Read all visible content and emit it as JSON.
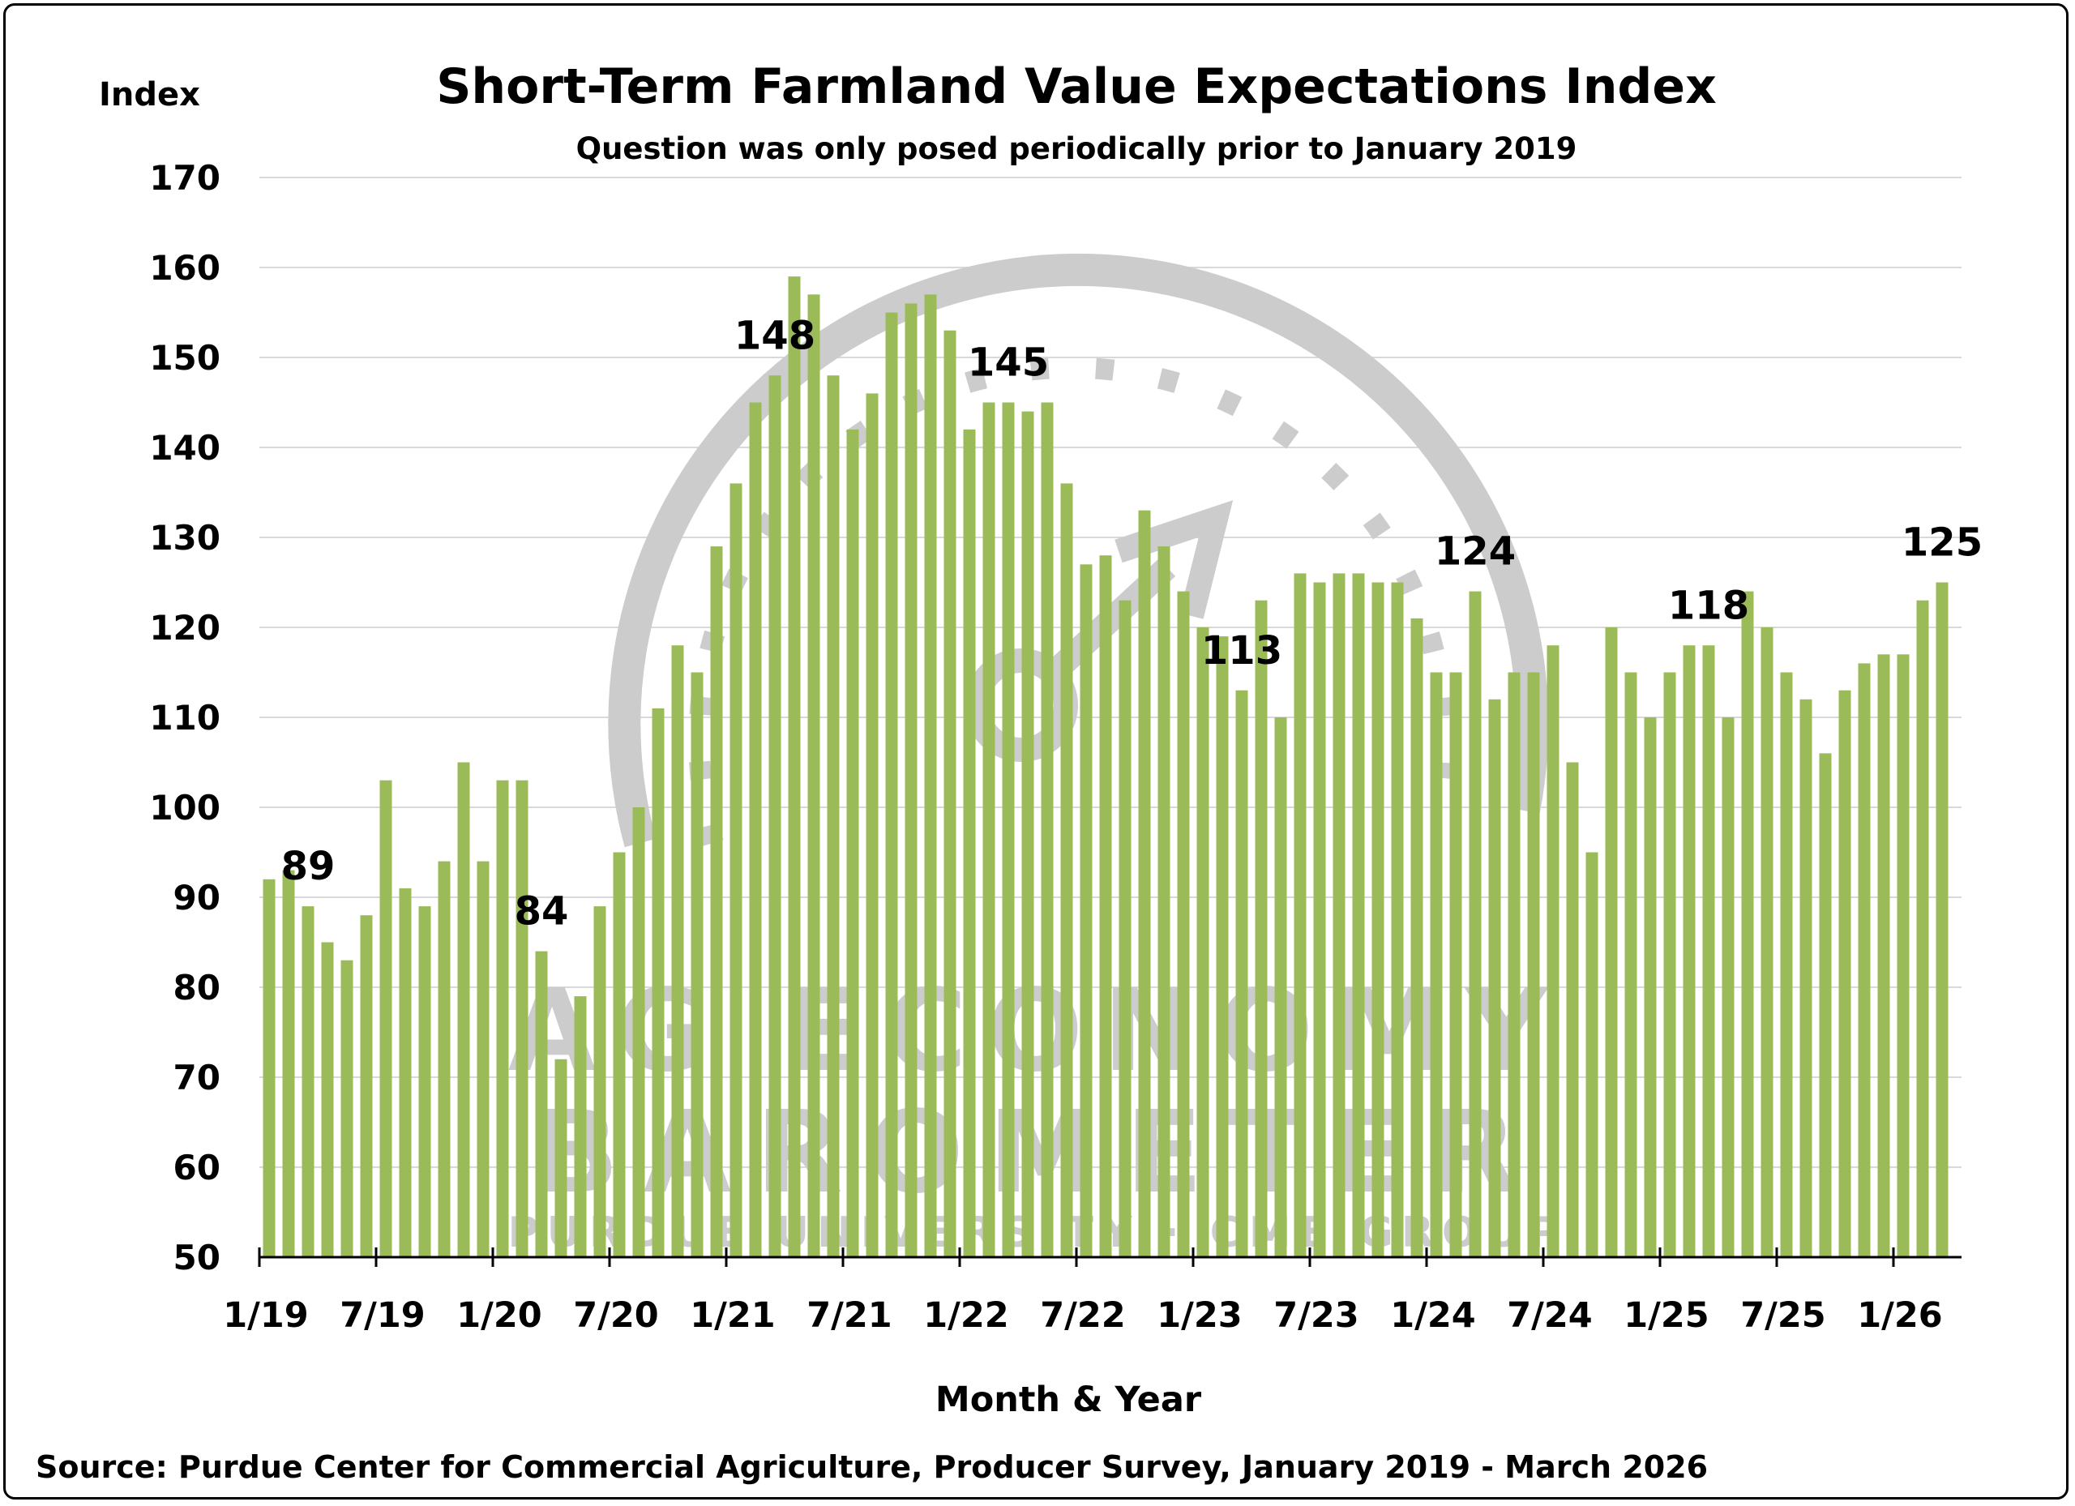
{
  "chart_data": {
    "type": "bar",
    "title": "Short-Term Farmland Value Expectations Index",
    "subtitle": "Question was only posed periodically prior to January 2019",
    "ylabel": "Index",
    "xlabel": "Month & Year",
    "source": "Source: Purdue Center for Commercial Agriculture, Producer Survey, January 2019 - March 2026",
    "ylim": [
      50,
      170
    ],
    "yticks": [
      50,
      60,
      70,
      80,
      90,
      100,
      110,
      120,
      130,
      140,
      150,
      160,
      170
    ],
    "grid": true,
    "bar_color": "#9BBB59",
    "grid_color": "#D9D9D9",
    "xtick_labels": [
      "1/19",
      "7/19",
      "1/20",
      "7/20",
      "1/21",
      "7/21",
      "1/22",
      "7/22",
      "1/23",
      "7/23",
      "1/24",
      "7/24",
      "1/25",
      "7/25",
      "1/26"
    ],
    "categories": [
      "1/19",
      "2/19",
      "3/19",
      "4/19",
      "5/19",
      "6/19",
      "7/19",
      "8/19",
      "9/19",
      "10/19",
      "11/19",
      "12/19",
      "1/20",
      "2/20",
      "3/20",
      "4/20",
      "5/20",
      "6/20",
      "7/20",
      "8/20",
      "9/20",
      "10/20",
      "11/20",
      "12/20",
      "1/21",
      "2/21",
      "3/21",
      "4/21",
      "5/21",
      "6/21",
      "7/21",
      "8/21",
      "9/21",
      "10/21",
      "11/21",
      "12/21",
      "1/22",
      "2/22",
      "3/22",
      "4/22",
      "5/22",
      "6/22",
      "7/22",
      "8/22",
      "9/22",
      "10/22",
      "11/22",
      "12/22",
      "1/23",
      "2/23",
      "3/23",
      "4/23",
      "5/23",
      "6/23",
      "7/23",
      "8/23",
      "9/23",
      "10/23",
      "11/23",
      "12/23",
      "1/24",
      "2/24",
      "3/24",
      "4/24",
      "5/24",
      "6/24",
      "7/24",
      "8/24",
      "9/24",
      "10/24",
      "11/24",
      "12/24",
      "1/25",
      "2/25",
      "3/25",
      "4/25",
      "5/25",
      "6/25",
      "7/25",
      "8/25",
      "9/25",
      "10/25",
      "11/25",
      "12/25",
      "1/26",
      "2/26",
      "3/26"
    ],
    "values": [
      92,
      93,
      89,
      85,
      83,
      88,
      103,
      91,
      89,
      94,
      105,
      94,
      103,
      103,
      84,
      72,
      79,
      89,
      95,
      100,
      111,
      118,
      115,
      129,
      136,
      145,
      148,
      159,
      157,
      148,
      142,
      146,
      155,
      156,
      157,
      153,
      142,
      145,
      145,
      144,
      145,
      136,
      127,
      128,
      123,
      133,
      129,
      124,
      120,
      119,
      113,
      123,
      110,
      126,
      125,
      126,
      126,
      125,
      125,
      121,
      115,
      115,
      124,
      112,
      115,
      115,
      118,
      105,
      95,
      120,
      115,
      110,
      115,
      118,
      118,
      110,
      124,
      120,
      115,
      112,
      106,
      113,
      116,
      117,
      117,
      123,
      125
    ],
    "annotations": [
      {
        "category": "3/19",
        "text": "89"
      },
      {
        "category": "3/20",
        "text": "84"
      },
      {
        "category": "3/21",
        "text": "148"
      },
      {
        "category": "3/22",
        "text": "145"
      },
      {
        "category": "3/23",
        "text": "113"
      },
      {
        "category": "3/24",
        "text": "124"
      },
      {
        "category": "3/25",
        "text": "118"
      },
      {
        "category": "3/26",
        "text": "125"
      }
    ]
  },
  "watermark": {
    "line1": "AG ECONOMY",
    "line2": "BAROMETER",
    "line3": "PURDUE UNIVERSITY · CME GROUP",
    "color": "#CCCCCC"
  }
}
